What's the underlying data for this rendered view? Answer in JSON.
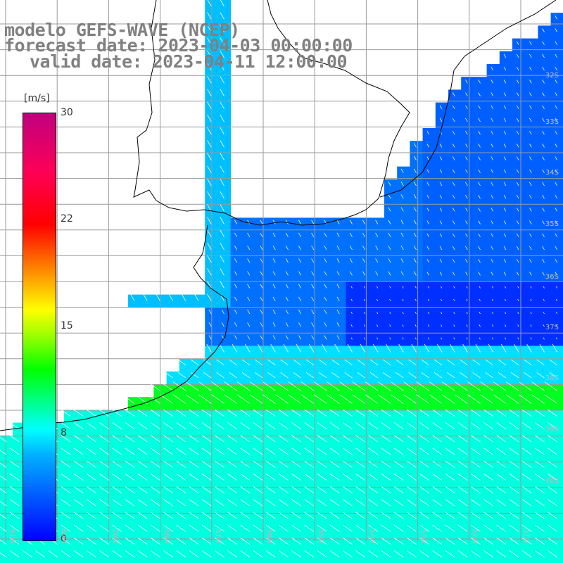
{
  "title": {
    "model": "modelo GEFS-WAVE (NCEP)",
    "forecast": "forecast date: 2023-04-03 00:00:00",
    "valid": "valid date: 2023-04-11 12:00:00"
  },
  "colorbar": {
    "unit": "[m/s]",
    "ticks": [
      "30",
      "22",
      "15",
      "8",
      "0"
    ],
    "stops": [
      {
        "value": 0,
        "color": "#0000ff"
      },
      {
        "value": 8,
        "color": "#00ffff"
      },
      {
        "value": 12,
        "color": "#00ff00"
      },
      {
        "value": 15,
        "color": "#ffff00"
      },
      {
        "value": 22,
        "color": "#ff0000"
      },
      {
        "value": 30,
        "color": "#c0007f"
      }
    ]
  },
  "map": {
    "lat_labels": [
      "32S",
      "33S",
      "34S",
      "35S",
      "36S",
      "37S",
      "38S",
      "39S",
      "40S"
    ],
    "lon_labels": [
      "61W",
      "60W",
      "59W",
      "58W",
      "57W",
      "56W",
      "55W",
      "54W",
      "53W",
      "52W",
      "51W"
    ],
    "colors": {
      "low_wind": "#1a4cff",
      "mid_wind": "#00aaff",
      "high_wind": "#00ff66",
      "grid": "#9a9a9a",
      "coast": "#000000",
      "arrow": "#ffffff"
    }
  }
}
